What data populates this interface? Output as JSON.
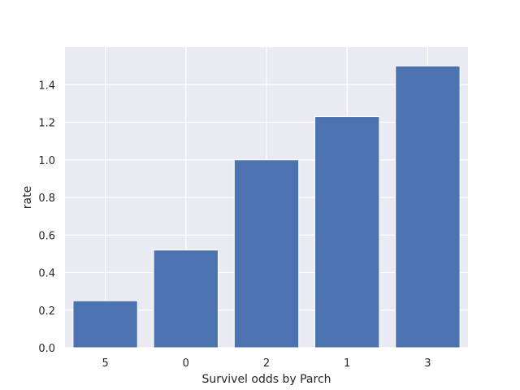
{
  "chart_data": {
    "type": "bar",
    "title": "",
    "xlabel": "Survivel odds by Parch",
    "ylabel": "rate",
    "categories": [
      "5",
      "0",
      "2",
      "1",
      "3"
    ],
    "values": [
      0.25,
      0.52,
      1.0,
      1.23,
      1.5
    ],
    "ylim": [
      0,
      1.6
    ],
    "yticks": [
      "0.0",
      "0.2",
      "0.4",
      "0.6",
      "0.8",
      "1.0",
      "1.2",
      "1.4"
    ],
    "grid": true,
    "legend": "none",
    "colors": {
      "bar": "#4c72b0",
      "background": "#eaeaf2",
      "grid": "#ffffff"
    }
  }
}
